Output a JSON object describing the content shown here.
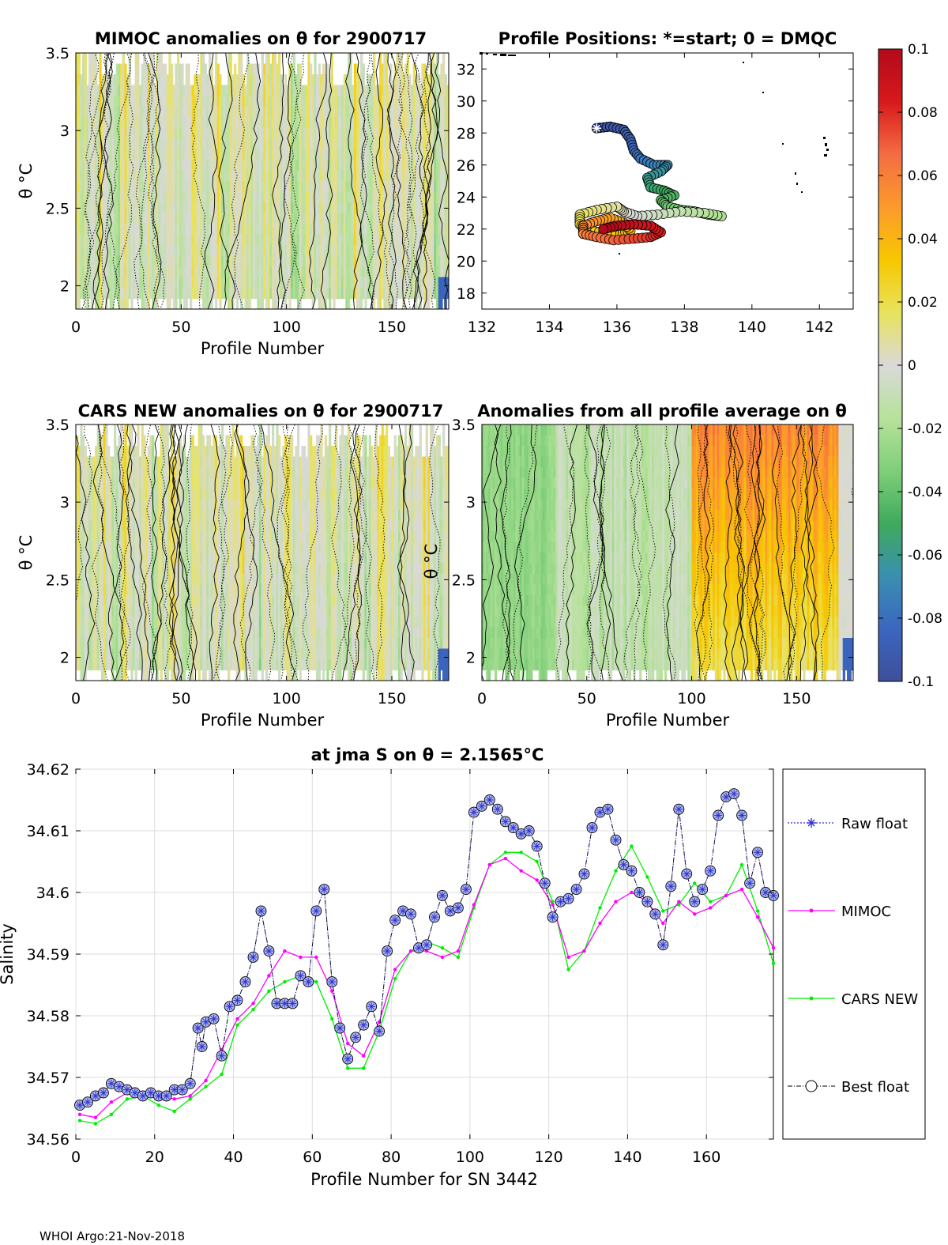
{
  "footer": "WHOI Argo:21-Nov-2018",
  "colors": {
    "raw": "#3333cc",
    "mimoc": "#ff00ff",
    "cars": "#00ee00",
    "best": "#000000",
    "marker_fill": "#aab6f0",
    "grid": "#dddddd"
  },
  "colorbar": {
    "ticks": [
      "0.1",
      "0.08",
      "0.06",
      "0.04",
      "0.02",
      "0",
      "-0.02",
      "-0.04",
      "-0.06",
      "-0.08",
      "-0.1"
    ],
    "stops": [
      "#b20a1c",
      "#d7191c",
      "#f46d43",
      "#fc9a2c",
      "#f7c700",
      "#e8e35c",
      "#d9d9d9",
      "#b7e29a",
      "#7fcf7a",
      "#3faa5b",
      "#3a8fb0",
      "#3b66c0",
      "#3e4f9a"
    ]
  },
  "chart_data": [
    {
      "id": "mimoc",
      "type": "heatmap",
      "title": "MIMOC anomalies on θ  for 2900717",
      "xlabel": "Profile Number",
      "ylabel": "θ °C",
      "xlim": [
        0,
        177
      ],
      "ylim": [
        1.85,
        3.5
      ],
      "xticks": [
        "0",
        "50",
        "100",
        "150"
      ],
      "yticks": [
        "2",
        "2.5",
        "3",
        "3.5"
      ]
    },
    {
      "id": "positions",
      "type": "scatter",
      "title": "Profile Positions: *=start; 0 = DMQC",
      "xlim": [
        132,
        143
      ],
      "ylim": [
        17,
        33
      ],
      "xticks": [
        "132",
        "134",
        "136",
        "138",
        "140",
        "142"
      ],
      "yticks": [
        "18",
        "20",
        "22",
        "24",
        "26",
        "28",
        "30",
        "32"
      ],
      "track": [
        [
          135.4,
          28.3
        ],
        [
          135.8,
          28.4
        ],
        [
          136.2,
          28.2
        ],
        [
          136.4,
          27.6
        ],
        [
          136.5,
          26.9
        ],
        [
          136.7,
          26.4
        ],
        [
          137.1,
          26.0
        ],
        [
          137.5,
          26.0
        ],
        [
          137.3,
          25.6
        ],
        [
          136.9,
          25.2
        ],
        [
          137.0,
          24.6
        ],
        [
          137.4,
          24.4
        ],
        [
          137.7,
          24.1
        ],
        [
          137.3,
          23.8
        ],
        [
          137.5,
          23.4
        ],
        [
          137.9,
          23.2
        ],
        [
          138.3,
          23.1
        ],
        [
          138.7,
          22.9
        ],
        [
          139.1,
          22.8
        ],
        [
          138.6,
          23.0
        ],
        [
          137.9,
          23.1
        ],
        [
          137.2,
          22.9
        ],
        [
          136.6,
          22.8
        ],
        [
          136.2,
          23.1
        ],
        [
          136.0,
          23.4
        ],
        [
          135.4,
          23.2
        ],
        [
          134.9,
          22.9
        ],
        [
          134.9,
          22.3
        ],
        [
          135.1,
          21.9
        ],
        [
          135.6,
          21.8
        ],
        [
          136.1,
          21.7
        ],
        [
          136.4,
          21.9
        ],
        [
          136.2,
          22.4
        ],
        [
          135.8,
          22.7
        ],
        [
          135.4,
          22.5
        ],
        [
          135.0,
          22.2
        ],
        [
          135.0,
          21.7
        ],
        [
          135.4,
          21.5
        ],
        [
          135.9,
          21.3
        ],
        [
          136.5,
          21.4
        ],
        [
          137.0,
          21.5
        ],
        [
          137.3,
          21.8
        ],
        [
          137.0,
          22.2
        ],
        [
          136.5,
          22.3
        ],
        [
          136.0,
          22.2
        ],
        [
          135.6,
          22.0
        ]
      ]
    },
    {
      "id": "cars",
      "type": "heatmap",
      "title": "CARS NEW anomalies on θ for 2900717",
      "xlabel": "Profile Number",
      "ylabel": "θ °C",
      "xlim": [
        0,
        177
      ],
      "ylim": [
        1.85,
        3.5
      ],
      "xticks": [
        "0",
        "50",
        "100",
        "150"
      ],
      "yticks": [
        "2",
        "2.5",
        "3",
        "3.5"
      ]
    },
    {
      "id": "avg",
      "type": "heatmap",
      "title": "Anomalies from all profile average on θ",
      "xlabel": "Profile Number",
      "ylabel": "θ °C",
      "xlim": [
        0,
        177
      ],
      "ylim": [
        1.85,
        3.5
      ],
      "xticks": [
        "0",
        "50",
        "100",
        "150"
      ],
      "yticks": [
        "2",
        "2.5",
        "3",
        "3.5"
      ]
    },
    {
      "id": "salinity",
      "type": "line",
      "title": "at jma S on θ = 2.1565°C",
      "xlabel": "Profile Number for SN 3442",
      "ylabel": "Salinity",
      "xlim": [
        0,
        177
      ],
      "ylim": [
        34.56,
        34.62
      ],
      "xticks": [
        "0",
        "20",
        "40",
        "60",
        "80",
        "100",
        "120",
        "140",
        "160"
      ],
      "yticks": [
        "34.56",
        "34.57",
        "34.58",
        "34.59",
        "34.6",
        "34.61",
        "34.62"
      ],
      "legend": [
        "Raw float",
        "MIMOC",
        "CARS NEW",
        "Best float"
      ],
      "series": [
        {
          "name": "Best float",
          "x": [
            1,
            3,
            5,
            7,
            9,
            11,
            13,
            15,
            17,
            19,
            21,
            23,
            25,
            27,
            29,
            31,
            32,
            33,
            35,
            37,
            39,
            41,
            43,
            45,
            47,
            49,
            51,
            53,
            55,
            57,
            59,
            61,
            63,
            65,
            67,
            69,
            71,
            73,
            75,
            77,
            79,
            81,
            83,
            85,
            87,
            89,
            91,
            93,
            95,
            97,
            99,
            101,
            103,
            105,
            107,
            109,
            111,
            113,
            115,
            117,
            119,
            121,
            123,
            125,
            127,
            129,
            131,
            133,
            135,
            137,
            139,
            141,
            143,
            145,
            147,
            149,
            151,
            153,
            155,
            157,
            159,
            161,
            163,
            165,
            167,
            169,
            171,
            173,
            175,
            177
          ],
          "values": [
            34.5655,
            34.566,
            34.567,
            34.5675,
            34.569,
            34.5685,
            34.568,
            34.5675,
            34.567,
            34.5675,
            34.567,
            34.567,
            34.568,
            34.568,
            34.569,
            34.578,
            34.575,
            34.579,
            34.5795,
            34.5735,
            34.5815,
            34.5825,
            34.5855,
            34.5895,
            34.597,
            34.5905,
            34.582,
            34.582,
            34.582,
            34.5865,
            34.5855,
            34.597,
            34.6005,
            34.5855,
            34.578,
            34.573,
            34.5765,
            34.5785,
            34.5815,
            34.5775,
            34.5905,
            34.5955,
            34.597,
            34.5965,
            34.591,
            34.5915,
            34.596,
            34.5995,
            34.597,
            34.5975,
            34.6005,
            34.613,
            34.614,
            34.615,
            34.6135,
            34.6115,
            34.6105,
            34.6095,
            34.61,
            34.6075,
            34.6015,
            34.596,
            34.5985,
            34.599,
            34.6005,
            34.603,
            34.6105,
            34.613,
            34.6135,
            34.6085,
            34.6045,
            34.6035,
            34.6,
            34.5985,
            34.5965,
            34.5915,
            34.601,
            34.6135,
            34.603,
            34.5985,
            34.6005,
            34.6035,
            34.6125,
            34.6155,
            34.616,
            34.6125,
            34.6015,
            34.6065,
            34.6,
            34.5995
          ]
        },
        {
          "name": "MIMOC",
          "x": [
            1,
            5,
            9,
            13,
            17,
            21,
            25,
            29,
            33,
            37,
            41,
            45,
            49,
            53,
            57,
            61,
            65,
            69,
            73,
            77,
            81,
            85,
            89,
            93,
            97,
            101,
            105,
            109,
            113,
            117,
            121,
            125,
            129,
            133,
            137,
            141,
            145,
            149,
            153,
            157,
            161,
            165,
            169,
            173,
            177
          ],
          "values": [
            34.564,
            34.5635,
            34.566,
            34.5675,
            34.5675,
            34.567,
            34.5665,
            34.567,
            34.5695,
            34.5745,
            34.5795,
            34.582,
            34.5865,
            34.5905,
            34.5895,
            34.5895,
            34.584,
            34.5755,
            34.5735,
            34.579,
            34.5875,
            34.5905,
            34.5905,
            34.5895,
            34.5905,
            34.598,
            34.6045,
            34.6055,
            34.6035,
            34.602,
            34.598,
            34.5895,
            34.5905,
            34.595,
            34.5985,
            34.6,
            34.5985,
            34.595,
            34.5985,
            34.5965,
            34.5975,
            34.5995,
            34.6005,
            34.596,
            34.591
          ]
        },
        {
          "name": "CARS NEW",
          "x": [
            1,
            5,
            9,
            13,
            17,
            21,
            25,
            29,
            33,
            37,
            41,
            45,
            49,
            53,
            57,
            61,
            65,
            69,
            73,
            77,
            81,
            85,
            89,
            93,
            97,
            101,
            105,
            109,
            113,
            117,
            121,
            125,
            129,
            133,
            137,
            141,
            145,
            149,
            153,
            157,
            161,
            165,
            169,
            173,
            177
          ],
          "values": [
            34.563,
            34.5625,
            34.564,
            34.5665,
            34.567,
            34.5655,
            34.5645,
            34.5665,
            34.5685,
            34.5705,
            34.5785,
            34.581,
            34.584,
            34.5855,
            34.5865,
            34.5855,
            34.5795,
            34.5715,
            34.5715,
            34.5775,
            34.586,
            34.5905,
            34.592,
            34.591,
            34.5895,
            34.5975,
            34.6045,
            34.6065,
            34.6065,
            34.605,
            34.5985,
            34.5875,
            34.5905,
            34.5975,
            34.6035,
            34.6075,
            34.6025,
            34.597,
            34.598,
            34.6015,
            34.5985,
            34.5995,
            34.6045,
            34.597,
            34.5885
          ]
        }
      ]
    }
  ]
}
